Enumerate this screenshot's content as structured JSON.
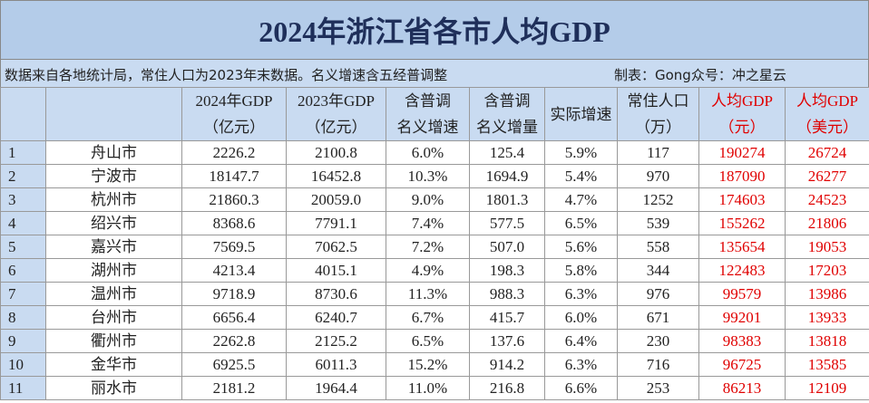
{
  "title": "2024年浙江省各市人均GDP",
  "note": {
    "source": "数据来自各地统计局，常住人口为2023年末数据。名义增速含五经普调整",
    "credit": "制表：Gong众号：冲之星云"
  },
  "table": {
    "header": [
      [],
      [],
      [
        "2024年GDP",
        "（亿元）"
      ],
      [
        "2023年GDP",
        "（亿元）"
      ],
      [
        "含普调",
        "名义增速"
      ],
      [
        "含普调",
        "名义增量"
      ],
      [
        "实际增速"
      ],
      [
        "常住人口",
        "（万）"
      ],
      [
        "人均GDP",
        "（元）"
      ],
      [
        "人均GDP",
        "（美元）"
      ]
    ],
    "rows": [
      [
        "1",
        "舟山市",
        "2226.2",
        "2100.8",
        "6.0%",
        "125.4",
        "5.9%",
        "117",
        "190274",
        "26724"
      ],
      [
        "2",
        "宁波市",
        "18147.7",
        "16452.8",
        "10.3%",
        "1694.9",
        "5.4%",
        "970",
        "187090",
        "26277"
      ],
      [
        "3",
        "杭州市",
        "21860.3",
        "20059.0",
        "9.0%",
        "1801.3",
        "4.7%",
        "1252",
        "174603",
        "24523"
      ],
      [
        "4",
        "绍兴市",
        "8368.6",
        "7791.1",
        "7.4%",
        "577.5",
        "6.5%",
        "539",
        "155262",
        "21806"
      ],
      [
        "5",
        "嘉兴市",
        "7569.5",
        "7062.5",
        "7.2%",
        "507.0",
        "5.6%",
        "558",
        "135654",
        "19053"
      ],
      [
        "6",
        "湖州市",
        "4213.4",
        "4015.1",
        "4.9%",
        "198.3",
        "5.8%",
        "344",
        "122483",
        "17203"
      ],
      [
        "7",
        "温州市",
        "9718.9",
        "8730.6",
        "11.3%",
        "988.3",
        "6.3%",
        "976",
        "99579",
        "13986"
      ],
      [
        "8",
        "台州市",
        "6656.4",
        "6240.7",
        "6.7%",
        "415.7",
        "6.0%",
        "671",
        "99201",
        "13933"
      ],
      [
        "9",
        "衢州市",
        "2262.8",
        "2125.2",
        "6.5%",
        "137.6",
        "6.4%",
        "230",
        "98383",
        "13818"
      ],
      [
        "10",
        "金华市",
        "6925.5",
        "6011.3",
        "15.2%",
        "914.2",
        "6.3%",
        "716",
        "96725",
        "13585"
      ],
      [
        "11",
        "丽水市",
        "2181.2",
        "1964.4",
        "11.0%",
        "216.8",
        "6.6%",
        "253",
        "86213",
        "12109"
      ]
    ]
  }
}
